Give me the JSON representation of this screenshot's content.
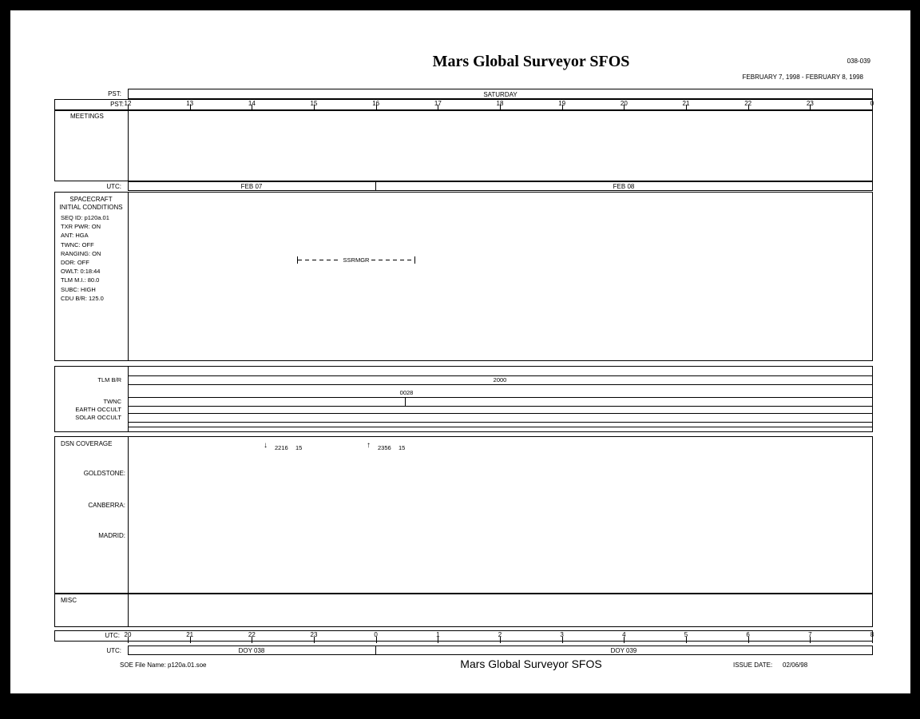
{
  "header": {
    "title": "Mars Global Surveyor SFOS",
    "doy_range": "038-039",
    "date_range": "FEBRUARY 7, 1998 - FEBRUARY 8, 1998"
  },
  "pst_bar": {
    "label": "PST:",
    "day": "SATURDAY"
  },
  "pst_scale": {
    "label": "PST:",
    "ticks": [
      "12",
      "13",
      "14",
      "15",
      "16",
      "17",
      "18",
      "19",
      "20",
      "21",
      "22",
      "23",
      "0"
    ]
  },
  "meetings": {
    "label": "MEETINGS"
  },
  "utc_day_bar": {
    "label": "UTC:",
    "segments": [
      "FEB 07",
      "FEB 08"
    ]
  },
  "spacecraft": {
    "label_line1": "SPACECRAFT",
    "label_line2": "INITIAL CONDITIONS",
    "conditions": [
      "SEQ ID: p120a.01",
      "TXR PWR: ON",
      "ANT: HGA",
      "TWNC: OFF",
      "RANGING: ON",
      "DOR: OFF",
      "OWLT: 0:18:44",
      "TLM M.I.: 80.0",
      "SUBC: HIGH",
      "CDU B/R: 125.0"
    ],
    "annotation": "SSRMGR"
  },
  "telemetry": {
    "rows": [
      "TLM B/R",
      "TWNC",
      "EARTH OCCULT",
      "SOLAR OCCULT"
    ],
    "tlm_rate": "2000",
    "event_time": "0028"
  },
  "dsn": {
    "label": "DSN COVERAGE",
    "events": [
      {
        "icon": "down-arrow",
        "time": "2216",
        "duration": "15"
      },
      {
        "icon": "up-arrow",
        "time": "2356",
        "duration": "15"
      }
    ],
    "stations": [
      "GOLDSTONE:",
      "CANBERRA:",
      "MADRID:"
    ]
  },
  "misc": {
    "label": "MISC"
  },
  "utc_scale": {
    "label": "UTC:",
    "ticks": [
      "20",
      "21",
      "22",
      "23",
      "0",
      "1",
      "2",
      "3",
      "4",
      "5",
      "6",
      "7",
      "8"
    ]
  },
  "utc_doy_bar": {
    "label": "UTC:",
    "segments": [
      "DOY 038",
      "DOY 039"
    ]
  },
  "footer": {
    "file_label": "SOE File Name: p120a.01.soe",
    "title": "Mars Global Surveyor SFOS",
    "issue_label": "ISSUE DATE:",
    "issue_date": "02/06/98"
  },
  "glyphs": {
    "down-arrow": "↓",
    "up-arrow": "↑"
  },
  "colors": {
    "ink": "#000000",
    "paper": "#ffffff"
  }
}
